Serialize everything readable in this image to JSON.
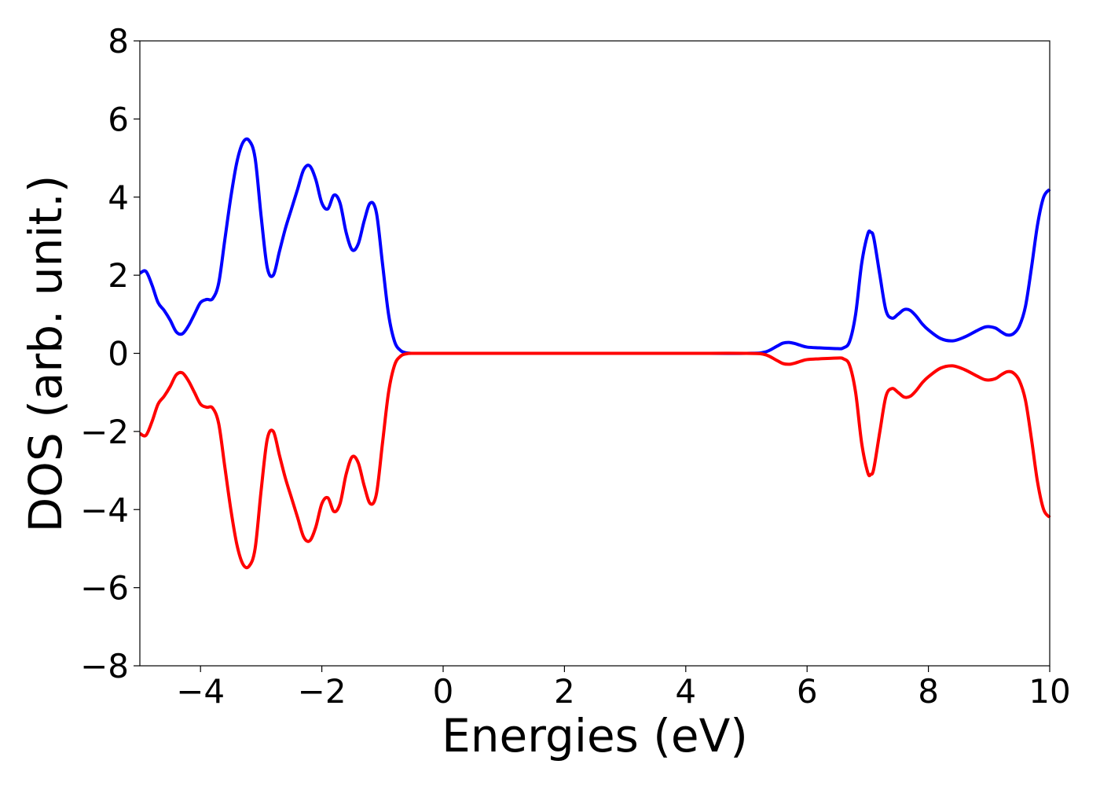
{
  "chart_data": {
    "type": "line",
    "title": "",
    "xlabel": "Energies (eV)",
    "ylabel": "DOS (arb. unit.)",
    "xlim": [
      -5,
      10
    ],
    "ylim": [
      -8,
      8
    ],
    "x_ticks": [
      -4,
      -2,
      0,
      2,
      4,
      6,
      8,
      10
    ],
    "y_ticks": [
      -8,
      -6,
      -4,
      -2,
      0,
      2,
      4,
      6,
      8
    ],
    "x_tick_labels": [
      "−4",
      "−2",
      "0",
      "2",
      "4",
      "6",
      "8",
      "10"
    ],
    "y_tick_labels": [
      "−8",
      "−6",
      "−4",
      "−2",
      "0",
      "2",
      "4",
      "6",
      "8"
    ],
    "grid": false,
    "legend": "none",
    "series": [
      {
        "color": "#0000ff",
        "x": [
          -5.0,
          -4.9,
          -4.8,
          -4.7,
          -4.6,
          -4.5,
          -4.4,
          -4.3,
          -4.2,
          -4.1,
          -4.0,
          -3.9,
          -3.8,
          -3.7,
          -3.6,
          -3.5,
          -3.4,
          -3.3,
          -3.2,
          -3.1,
          -3.0,
          -2.9,
          -2.8,
          -2.7,
          -2.6,
          -2.5,
          -2.4,
          -2.3,
          -2.2,
          -2.1,
          -2.0,
          -1.9,
          -1.8,
          -1.7,
          -1.6,
          -1.5,
          -1.4,
          -1.3,
          -1.2,
          -1.1,
          -1.0,
          -0.9,
          -0.8,
          -0.7,
          -0.6,
          -0.5,
          -0.4,
          0.0,
          1.0,
          2.0,
          3.0,
          4.0,
          5.0,
          5.3,
          5.5,
          5.6,
          5.7,
          5.8,
          5.9,
          6.0,
          6.2,
          6.5,
          6.6,
          6.7,
          6.8,
          6.9,
          7.0,
          7.05,
          7.1,
          7.2,
          7.3,
          7.4,
          7.5,
          7.6,
          7.7,
          7.8,
          7.9,
          8.0,
          8.2,
          8.4,
          8.6,
          8.8,
          8.95,
          9.1,
          9.2,
          9.3,
          9.4,
          9.5,
          9.6,
          9.7,
          9.8,
          9.9,
          10.0
        ],
        "y": [
          2.05,
          2.1,
          1.75,
          1.3,
          1.1,
          0.85,
          0.55,
          0.5,
          0.7,
          1.0,
          1.3,
          1.38,
          1.4,
          1.8,
          2.9,
          4.0,
          4.9,
          5.4,
          5.45,
          5.0,
          3.5,
          2.2,
          2.0,
          2.6,
          3.2,
          3.7,
          4.2,
          4.7,
          4.8,
          4.45,
          3.85,
          3.7,
          4.05,
          3.85,
          3.1,
          2.65,
          2.8,
          3.4,
          3.85,
          3.6,
          2.3,
          1.0,
          0.3,
          0.07,
          0.01,
          0.0,
          0.0,
          0.0,
          0.0,
          0.0,
          0.0,
          0.0,
          0.0,
          0.03,
          0.18,
          0.26,
          0.28,
          0.25,
          0.2,
          0.16,
          0.14,
          0.12,
          0.14,
          0.3,
          1.0,
          2.3,
          3.05,
          3.1,
          2.95,
          2.0,
          1.1,
          0.9,
          1.0,
          1.12,
          1.1,
          0.95,
          0.75,
          0.6,
          0.38,
          0.32,
          0.42,
          0.58,
          0.68,
          0.65,
          0.55,
          0.47,
          0.5,
          0.7,
          1.2,
          2.2,
          3.3,
          4.0,
          4.2
        ]
      },
      {
        "color": "#ff0000",
        "x": [
          -5.0,
          -4.9,
          -4.8,
          -4.7,
          -4.6,
          -4.5,
          -4.4,
          -4.3,
          -4.2,
          -4.1,
          -4.0,
          -3.9,
          -3.8,
          -3.7,
          -3.6,
          -3.5,
          -3.4,
          -3.3,
          -3.2,
          -3.1,
          -3.0,
          -2.9,
          -2.8,
          -2.7,
          -2.6,
          -2.5,
          -2.4,
          -2.3,
          -2.2,
          -2.1,
          -2.0,
          -1.9,
          -1.8,
          -1.7,
          -1.6,
          -1.5,
          -1.4,
          -1.3,
          -1.2,
          -1.1,
          -1.0,
          -0.9,
          -0.8,
          -0.7,
          -0.6,
          -0.5,
          -0.4,
          0.0,
          1.0,
          2.0,
          3.0,
          4.0,
          5.0,
          5.3,
          5.5,
          5.6,
          5.7,
          5.8,
          5.9,
          6.0,
          6.2,
          6.5,
          6.6,
          6.7,
          6.8,
          6.9,
          7.0,
          7.05,
          7.1,
          7.2,
          7.3,
          7.4,
          7.5,
          7.6,
          7.7,
          7.8,
          7.9,
          8.0,
          8.2,
          8.4,
          8.6,
          8.8,
          8.95,
          9.1,
          9.2,
          9.3,
          9.4,
          9.5,
          9.6,
          9.7,
          9.8,
          9.9,
          10.0
        ],
        "y": [
          -2.05,
          -2.1,
          -1.75,
          -1.3,
          -1.1,
          -0.85,
          -0.55,
          -0.5,
          -0.7,
          -1.0,
          -1.3,
          -1.38,
          -1.4,
          -1.8,
          -2.9,
          -4.0,
          -4.9,
          -5.4,
          -5.45,
          -5.0,
          -3.5,
          -2.2,
          -2.0,
          -2.6,
          -3.2,
          -3.7,
          -4.2,
          -4.7,
          -4.8,
          -4.45,
          -3.85,
          -3.7,
          -4.05,
          -3.85,
          -3.1,
          -2.65,
          -2.8,
          -3.4,
          -3.85,
          -3.6,
          -2.3,
          -1.0,
          -0.3,
          -0.07,
          -0.01,
          0.0,
          0.0,
          0.0,
          0.0,
          0.0,
          0.0,
          0.0,
          0.0,
          -0.03,
          -0.18,
          -0.26,
          -0.28,
          -0.25,
          -0.2,
          -0.16,
          -0.14,
          -0.12,
          -0.14,
          -0.3,
          -1.0,
          -2.3,
          -3.05,
          -3.1,
          -2.95,
          -2.0,
          -1.1,
          -0.9,
          -1.0,
          -1.12,
          -1.1,
          -0.95,
          -0.75,
          -0.6,
          -0.38,
          -0.32,
          -0.42,
          -0.58,
          -0.68,
          -0.65,
          -0.55,
          -0.47,
          -0.5,
          -0.7,
          -1.2,
          -2.2,
          -3.3,
          -4.0,
          -4.2
        ]
      }
    ]
  }
}
